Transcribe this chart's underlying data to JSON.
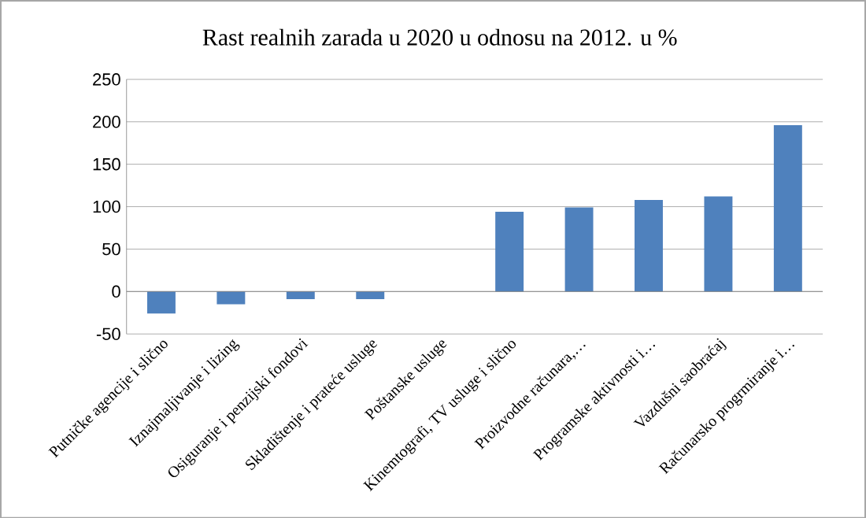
{
  "chart_data": {
    "type": "bar",
    "title": "Rast realnih zarada u 2020 u odnosu na 2012. u %",
    "categories": [
      "Putničke agencije i slično",
      "Iznajmaljivanje i lizing",
      "Osiguranje i penzijski fondovi",
      "Skladištenje i prateće usluge",
      "Poštanske usluge",
      "Kinemtografi, TV usluge i slično",
      "Proizvodne računara,…",
      "Programske  aktivnosti i…",
      "Vazdušni saobraćaj",
      "Računarsko progrmiranje i…"
    ],
    "values": [
      -26,
      -15,
      -9,
      -9,
      0,
      94,
      99,
      108,
      112,
      196
    ],
    "color": "#4f81bd",
    "ylim": [
      -50,
      250
    ],
    "yticks": [
      -50,
      0,
      50,
      100,
      150,
      200,
      250
    ],
    "grid": "y"
  }
}
